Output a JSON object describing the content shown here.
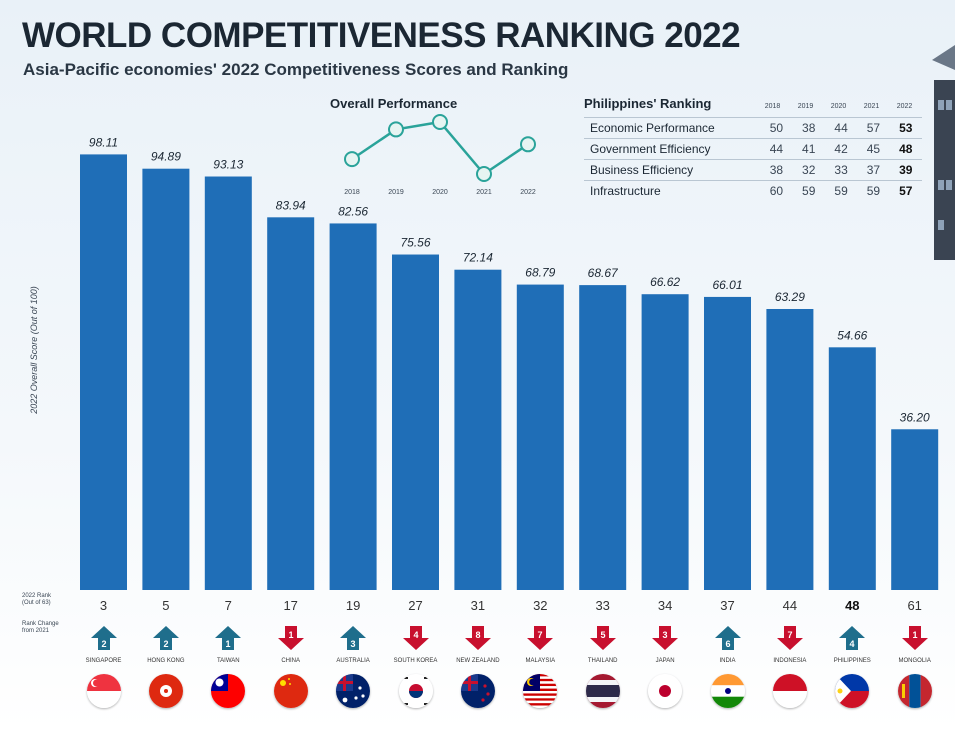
{
  "title": "WORLD COMPETITIVENESS RANKING 2022",
  "subtitle": "Asia-Pacific economies' 2022 Competitiveness Scores and Ranking",
  "colors": {
    "bar": "#1f6eb7",
    "up": "#1f6e8c",
    "down": "#c8102e",
    "line": "#2aa39a"
  },
  "chart_data": [
    {
      "type": "bar",
      "categories": [
        "SINGAPORE",
        "HONG KONG",
        "TAIWAN",
        "CHINA",
        "AUSTRALIA",
        "SOUTH KOREA",
        "NEW ZEALAND",
        "MALAYSIA",
        "THAILAND",
        "JAPAN",
        "INDIA",
        "INDONESIA",
        "PHILIPPINES",
        "MONGOLIA"
      ],
      "values": [
        98.11,
        94.89,
        93.13,
        83.94,
        82.56,
        75.56,
        72.14,
        68.79,
        68.67,
        66.62,
        66.01,
        63.29,
        54.66,
        36.2
      ],
      "value_labels": [
        "98.11",
        "94.89",
        "93.13",
        "83.94",
        "82.56",
        "75.56",
        "72.14",
        "68.79",
        "68.67",
        "66.62",
        "66.01",
        "63.29",
        "54.66",
        "36.20"
      ],
      "ylabel": "2022 Overall Score (Out of 100)",
      "ylim": [
        0,
        100
      ],
      "grid": false,
      "rank_2022": [
        3,
        5,
        7,
        17,
        19,
        27,
        31,
        32,
        33,
        34,
        37,
        44,
        48,
        61
      ],
      "rank_change_direction": [
        "up",
        "up",
        "up",
        "down",
        "up",
        "down",
        "down",
        "down",
        "down",
        "down",
        "up",
        "down",
        "up",
        "down"
      ],
      "rank_change": [
        2,
        2,
        1,
        1,
        3,
        4,
        8,
        7,
        5,
        3,
        6,
        7,
        4,
        1
      ]
    },
    {
      "type": "line",
      "title": "Overall Performance",
      "x": [
        "2018",
        "2019",
        "2020",
        "2021",
        "2022"
      ],
      "y": [
        50,
        46,
        45,
        52,
        48
      ],
      "y_reversed": true
    },
    {
      "type": "table",
      "title": "Philippines' Ranking",
      "columns": [
        "2018",
        "2019",
        "2020",
        "2021",
        "2022"
      ],
      "rows": [
        {
          "label": "Economic Performance",
          "values": [
            50,
            38,
            44,
            57,
            53
          ]
        },
        {
          "label": "Government Efficiency",
          "values": [
            44,
            41,
            42,
            45,
            48
          ]
        },
        {
          "label": "Business Efficiency",
          "values": [
            38,
            32,
            33,
            37,
            39
          ]
        },
        {
          "label": "Infrastructure",
          "values": [
            60,
            59,
            59,
            59,
            57
          ]
        }
      ]
    }
  ],
  "row_labels": [
    "2022 Rank",
    "(Out of 63)",
    "Rank Change",
    "from 2021"
  ],
  "flags": [
    "sg",
    "hk",
    "tw",
    "cn",
    "au",
    "kr",
    "nz",
    "my",
    "th",
    "jp",
    "in",
    "id",
    "ph",
    "mn"
  ]
}
